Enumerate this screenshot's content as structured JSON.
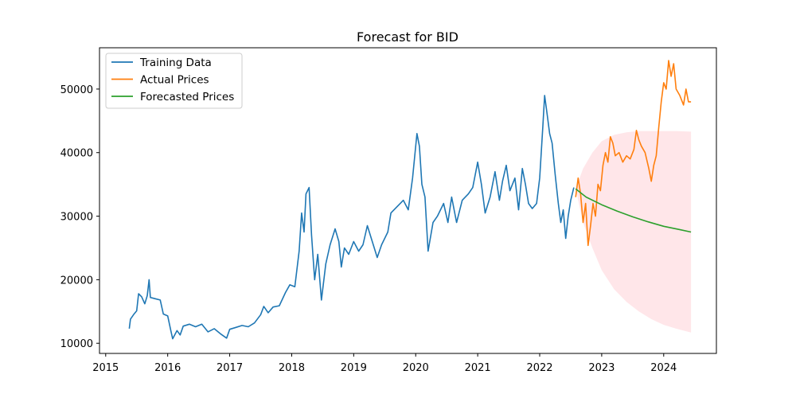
{
  "chart_data": {
    "type": "line",
    "title": "Forecast for BID",
    "xlabel": "",
    "ylabel": "",
    "xlim": [
      2014.9,
      2024.85
    ],
    "ylim": [
      8400,
      56500
    ],
    "x_ticks": [
      2015,
      2016,
      2017,
      2018,
      2019,
      2020,
      2021,
      2022,
      2023,
      2024
    ],
    "x_tick_labels": [
      "2015",
      "2016",
      "2017",
      "2018",
      "2019",
      "2020",
      "2021",
      "2022",
      "2023",
      "2024"
    ],
    "y_ticks": [
      10000,
      20000,
      30000,
      40000,
      50000
    ],
    "y_tick_labels": [
      "10000",
      "20000",
      "30000",
      "40000",
      "50000"
    ],
    "grid": false,
    "legend_position": "top-left",
    "series": [
      {
        "name": "Training Data",
        "color": "#1f77b4",
        "points": [
          [
            2015.38,
            12300
          ],
          [
            2015.4,
            13800
          ],
          [
            2015.45,
            14500
          ],
          [
            2015.5,
            15100
          ],
          [
            2015.53,
            17800
          ],
          [
            2015.58,
            17300
          ],
          [
            2015.63,
            16200
          ],
          [
            2015.67,
            17500
          ],
          [
            2015.7,
            20000
          ],
          [
            2015.72,
            17200
          ],
          [
            2015.8,
            17000
          ],
          [
            2015.88,
            16800
          ],
          [
            2015.93,
            14600
          ],
          [
            2016.0,
            14300
          ],
          [
            2016.05,
            12000
          ],
          [
            2016.08,
            10700
          ],
          [
            2016.15,
            12000
          ],
          [
            2016.2,
            11300
          ],
          [
            2016.25,
            12700
          ],
          [
            2016.35,
            13000
          ],
          [
            2016.45,
            12600
          ],
          [
            2016.55,
            13000
          ],
          [
            2016.65,
            11800
          ],
          [
            2016.75,
            12300
          ],
          [
            2016.85,
            11500
          ],
          [
            2016.95,
            10800
          ],
          [
            2017.0,
            12200
          ],
          [
            2017.1,
            12500
          ],
          [
            2017.2,
            12800
          ],
          [
            2017.3,
            12600
          ],
          [
            2017.4,
            13200
          ],
          [
            2017.5,
            14500
          ],
          [
            2017.55,
            15800
          ],
          [
            2017.62,
            14800
          ],
          [
            2017.7,
            15700
          ],
          [
            2017.8,
            15900
          ],
          [
            2017.9,
            18000
          ],
          [
            2017.97,
            19200
          ],
          [
            2018.05,
            18900
          ],
          [
            2018.12,
            24500
          ],
          [
            2018.16,
            30500
          ],
          [
            2018.2,
            27500
          ],
          [
            2018.23,
            33500
          ],
          [
            2018.28,
            34500
          ],
          [
            2018.32,
            27000
          ],
          [
            2018.37,
            20000
          ],
          [
            2018.42,
            24000
          ],
          [
            2018.48,
            16800
          ],
          [
            2018.55,
            22500
          ],
          [
            2018.62,
            25500
          ],
          [
            2018.7,
            28000
          ],
          [
            2018.76,
            26000
          ],
          [
            2018.8,
            22000
          ],
          [
            2018.85,
            25000
          ],
          [
            2018.92,
            24000
          ],
          [
            2019.0,
            26000
          ],
          [
            2019.08,
            24500
          ],
          [
            2019.15,
            25500
          ],
          [
            2019.22,
            28500
          ],
          [
            2019.3,
            26000
          ],
          [
            2019.38,
            23500
          ],
          [
            2019.45,
            25500
          ],
          [
            2019.55,
            27500
          ],
          [
            2019.6,
            30500
          ],
          [
            2019.7,
            31500
          ],
          [
            2019.8,
            32500
          ],
          [
            2019.88,
            31000
          ],
          [
            2019.95,
            36000
          ],
          [
            2020.02,
            43000
          ],
          [
            2020.06,
            41000
          ],
          [
            2020.1,
            35000
          ],
          [
            2020.15,
            33000
          ],
          [
            2020.2,
            24500
          ],
          [
            2020.28,
            29000
          ],
          [
            2020.35,
            30000
          ],
          [
            2020.45,
            32000
          ],
          [
            2020.52,
            29000
          ],
          [
            2020.58,
            33000
          ],
          [
            2020.66,
            29000
          ],
          [
            2020.75,
            32500
          ],
          [
            2020.85,
            33500
          ],
          [
            2020.92,
            34500
          ],
          [
            2021.0,
            38500
          ],
          [
            2021.06,
            35000
          ],
          [
            2021.12,
            30500
          ],
          [
            2021.2,
            33000
          ],
          [
            2021.28,
            37000
          ],
          [
            2021.35,
            32500
          ],
          [
            2021.4,
            35500
          ],
          [
            2021.46,
            38000
          ],
          [
            2021.52,
            34000
          ],
          [
            2021.6,
            36000
          ],
          [
            2021.66,
            31000
          ],
          [
            2021.72,
            37500
          ],
          [
            2021.77,
            35000
          ],
          [
            2021.82,
            32000
          ],
          [
            2021.88,
            31200
          ],
          [
            2021.95,
            32000
          ],
          [
            2022.0,
            36000
          ],
          [
            2022.05,
            44000
          ],
          [
            2022.08,
            49000
          ],
          [
            2022.12,
            46000
          ],
          [
            2022.16,
            43000
          ],
          [
            2022.2,
            41500
          ],
          [
            2022.25,
            36500
          ],
          [
            2022.3,
            32000
          ],
          [
            2022.34,
            29000
          ],
          [
            2022.38,
            31000
          ],
          [
            2022.42,
            26500
          ],
          [
            2022.46,
            30000
          ],
          [
            2022.5,
            32500
          ],
          [
            2022.55,
            34500
          ]
        ]
      },
      {
        "name": "Actual Prices",
        "color": "#ff7f0e",
        "points": [
          [
            2022.58,
            33000
          ],
          [
            2022.62,
            36000
          ],
          [
            2022.66,
            33500
          ],
          [
            2022.7,
            29000
          ],
          [
            2022.74,
            32000
          ],
          [
            2022.78,
            25400
          ],
          [
            2022.82,
            28500
          ],
          [
            2022.86,
            32000
          ],
          [
            2022.9,
            30000
          ],
          [
            2022.94,
            35000
          ],
          [
            2022.98,
            34000
          ],
          [
            2023.02,
            38000
          ],
          [
            2023.06,
            40000
          ],
          [
            2023.1,
            38500
          ],
          [
            2023.14,
            42500
          ],
          [
            2023.18,
            41500
          ],
          [
            2023.22,
            39500
          ],
          [
            2023.28,
            40000
          ],
          [
            2023.34,
            38500
          ],
          [
            2023.4,
            39500
          ],
          [
            2023.46,
            39000
          ],
          [
            2023.52,
            40500
          ],
          [
            2023.56,
            43500
          ],
          [
            2023.6,
            42000
          ],
          [
            2023.64,
            41000
          ],
          [
            2023.7,
            40000
          ],
          [
            2023.76,
            37500
          ],
          [
            2023.8,
            35500
          ],
          [
            2023.84,
            38000
          ],
          [
            2023.88,
            39500
          ],
          [
            2023.92,
            44000
          ],
          [
            2023.96,
            48000
          ],
          [
            2024.0,
            51000
          ],
          [
            2024.04,
            50000
          ],
          [
            2024.08,
            54500
          ],
          [
            2024.12,
            52000
          ],
          [
            2024.16,
            54000
          ],
          [
            2024.2,
            50000
          ],
          [
            2024.26,
            49000
          ],
          [
            2024.32,
            47500
          ],
          [
            2024.36,
            50000
          ],
          [
            2024.4,
            48000
          ],
          [
            2024.44,
            48000
          ]
        ]
      },
      {
        "name": "Forecasted Prices",
        "color": "#2ca02c",
        "points": [
          [
            2022.58,
            34300
          ],
          [
            2022.75,
            33000
          ],
          [
            2023.0,
            31800
          ],
          [
            2023.25,
            30800
          ],
          [
            2023.5,
            29900
          ],
          [
            2023.75,
            29100
          ],
          [
            2024.0,
            28400
          ],
          [
            2024.25,
            27900
          ],
          [
            2024.44,
            27500
          ]
        ]
      }
    ],
    "confidence_band": {
      "color": "#ffb6c1",
      "x": [
        2022.58,
        2022.7,
        2022.85,
        2023.0,
        2023.2,
        2023.4,
        2023.6,
        2023.8,
        2024.0,
        2024.2,
        2024.44
      ],
      "upper": [
        34300,
        37500,
        40000,
        41800,
        42800,
        43200,
        43400,
        43400,
        43400,
        43400,
        43300
      ],
      "lower": [
        34300,
        29000,
        25000,
        21500,
        18500,
        16500,
        15000,
        13800,
        12900,
        12300,
        11700
      ]
    }
  }
}
